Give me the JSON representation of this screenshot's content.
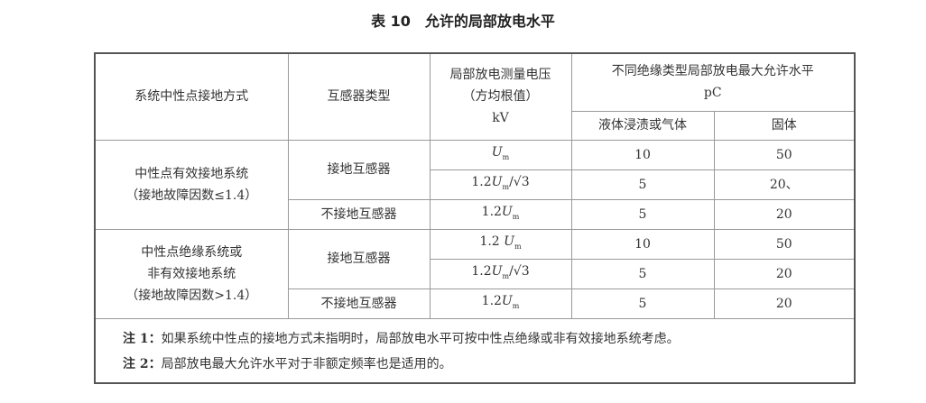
{
  "title": "表 10　允许的局部放电水平",
  "header": {
    "col1": "系统中性点接地方式",
    "col2": "互感器类型",
    "col3_line1": "局部放电测量电压",
    "col3_line2": "（方均根值）",
    "col3_line3": "kV",
    "col4_line1": "不同绝缘类型局部放电最大允许水平",
    "col4_line2": "pC",
    "col4a": "液体浸渍或气体",
    "col4b": "固体"
  },
  "groups": [
    {
      "system_line1": "中性点有效接地系统",
      "system_line2": "（接地故障因数≤1.4）",
      "rows": [
        {
          "type": "接地互感器",
          "v_pre": "",
          "v_var": "U",
          "v_sub": "m",
          "v_suf": "",
          "liquid": "10",
          "solid": "50"
        },
        {
          "type": "",
          "v_pre": "1.2",
          "v_var": "U",
          "v_sub": "m",
          "v_suf": "/√3",
          "liquid": "5",
          "solid": "20、"
        },
        {
          "type": "不接地互感器",
          "v_pre": "1.2",
          "v_var": "U",
          "v_sub": "m",
          "v_suf": "",
          "liquid": "5",
          "solid": "20"
        }
      ]
    },
    {
      "system_line1": "中性点绝缘系统或",
      "system_line2": "非有效接地系统",
      "system_line3": "（接地故障因数>1.4）",
      "rows": [
        {
          "type": "接地互感器",
          "v_pre": "1.2 ",
          "v_var": "U",
          "v_sub": "m",
          "v_suf": "",
          "liquid": "10",
          "solid": "50"
        },
        {
          "type": "",
          "v_pre": "1.2",
          "v_var": "U",
          "v_sub": "m",
          "v_suf": "/√3",
          "liquid": "5",
          "solid": "20"
        },
        {
          "type": "不接地互感器",
          "v_pre": "1.2",
          "v_var": "U",
          "v_sub": "m",
          "v_suf": "",
          "liquid": "5",
          "solid": "20"
        }
      ]
    }
  ],
  "notes": [
    {
      "label": "注 1：",
      "text": "如果系统中性点的接地方式未指明时，局部放电水平可按中性点绝缘或非有效接地系统考虑。"
    },
    {
      "label": "注 2：",
      "text": "局部放电最大允许水平对于非额定频率也是适用的。"
    }
  ]
}
